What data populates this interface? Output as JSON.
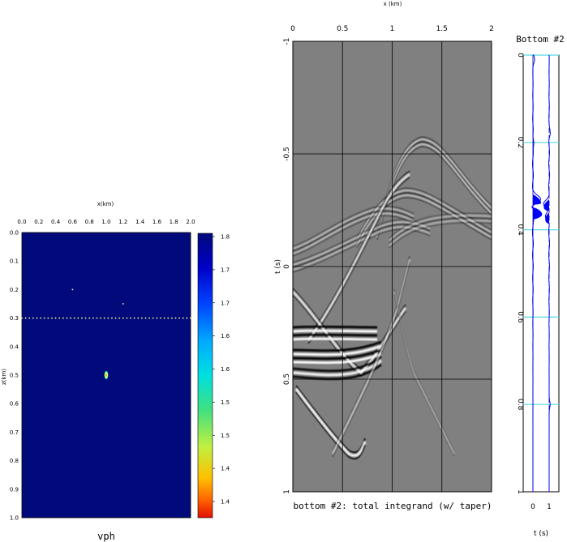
{
  "colors": {
    "background_model": "#000a7a",
    "seismic_gray": "#808080",
    "trace_fill": "#0000ff",
    "highlight_line": "#55d8e8"
  },
  "chart_data": [
    {
      "id": "vph",
      "type": "heatmap",
      "title": "",
      "caption": "vph",
      "xlabel": "x(km)",
      "ylabel": "z(km)",
      "xlim": [
        0.0,
        2.0
      ],
      "ylim": [
        0.0,
        1.0
      ],
      "x_ticks": [
        "0.0",
        "0.2",
        "0.4",
        "0.6",
        "0.8",
        "1.0",
        "1.2",
        "1.4",
        "1.6",
        "1.8",
        "2.0"
      ],
      "y_ticks": [
        "0.0",
        "0.1",
        "0.2",
        "0.3",
        "0.4",
        "0.5",
        "0.6",
        "0.7",
        "0.8",
        "0.9",
        "1.0"
      ],
      "point_scatterers": [
        {
          "x": 0.6,
          "z": 0.2
        },
        {
          "x": 1.2,
          "z": 0.25
        },
        {
          "x": 1.0,
          "z": 0.5
        }
      ],
      "scatterer_row": {
        "z": 0.3,
        "x_start": 0.0,
        "x_end": 2.0,
        "count": 46
      },
      "colorbar": {
        "ticks": [
          "1.8",
          "1.7",
          "1.7",
          "1.6",
          "1.6",
          "1.5",
          "1.5",
          "1.4",
          "1.4"
        ],
        "colors": [
          "#000a7a",
          "#0000c8",
          "#0044ff",
          "#00aaff",
          "#00e0e0",
          "#40e080",
          "#c0f040",
          "#ffc000",
          "#ff6000",
          "#e01000"
        ]
      }
    },
    {
      "id": "integrand",
      "type": "heatmap",
      "title": "x (km)",
      "caption": "bottom #2: total integrand (w/ taper)",
      "xlabel": "x (km)",
      "ylabel": "t (s)",
      "xlim": [
        0,
        2
      ],
      "ylim": [
        -1,
        1
      ],
      "x_ticks": [
        "0",
        "0.5",
        "1",
        "1.5",
        "2"
      ],
      "y_ticks": [
        "-1",
        "-0.5",
        "0",
        "0.5",
        "1"
      ],
      "grid": true
    },
    {
      "id": "bottom2",
      "type": "line",
      "title": "Bottom #2",
      "xlabel": "t (s)",
      "x_ticks": [
        "0",
        "1"
      ],
      "y_ticks": [
        "0",
        "0.2",
        "0.4",
        "0.6",
        "0.8",
        "1"
      ],
      "highlight_levels": [
        0,
        0.2,
        0.4,
        0.6,
        0.8
      ],
      "series": [
        {
          "values_trace0_peaks": [
            [
              0.33,
              1.0
            ],
            [
              0.36,
              0.9
            ]
          ]
        },
        {
          "values_trace1_peaks": [
            [
              0.34,
              0.85
            ],
            [
              0.36,
              0.6
            ]
          ]
        }
      ]
    }
  ]
}
